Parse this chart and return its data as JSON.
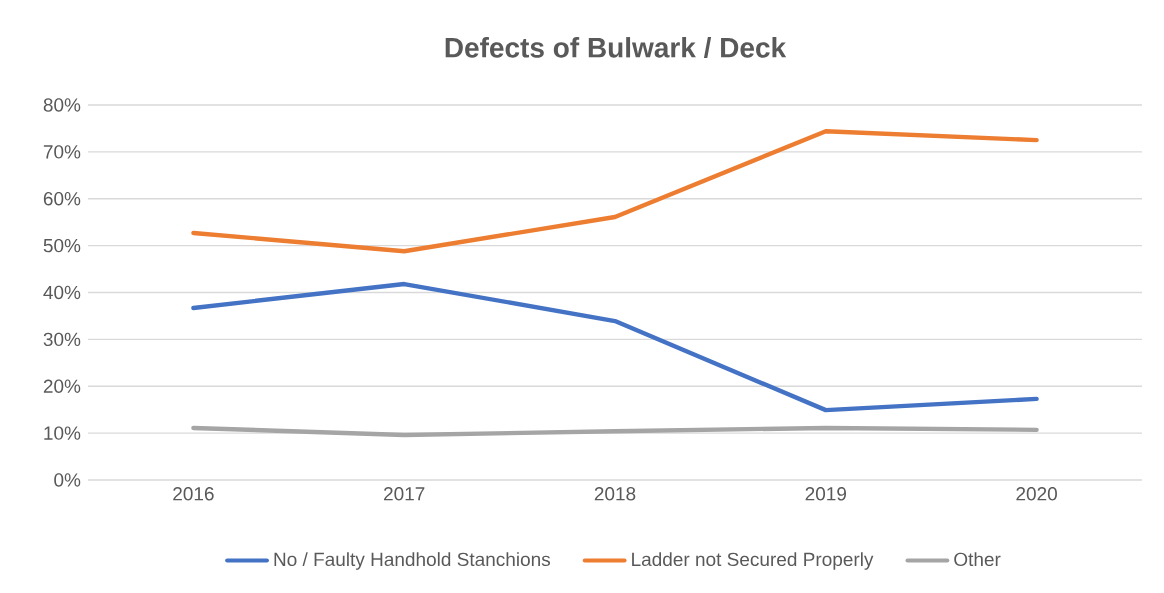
{
  "chart_data": {
    "type": "line",
    "title": "Defects of Bulwark / Deck",
    "categories": [
      "2016",
      "2017",
      "2018",
      "2019",
      "2020"
    ],
    "series": [
      {
        "name": "No / Faulty Handhold Stanchions",
        "color": "#4472c4",
        "values": [
          36.7,
          41.8,
          33.9,
          14.9,
          17.3
        ]
      },
      {
        "name": "Ladder not Secured Properly",
        "color": "#ed7d31",
        "values": [
          52.7,
          48.8,
          56.1,
          74.4,
          72.5
        ]
      },
      {
        "name": "Other",
        "color": "#a5a5a5",
        "values": [
          11.1,
          9.6,
          10.4,
          11.1,
          10.7
        ]
      }
    ],
    "ylim": [
      0,
      80
    ],
    "yticks": [
      {
        "value": 0,
        "label": "0%"
      },
      {
        "value": 10,
        "label": "10%"
      },
      {
        "value": 20,
        "label": "20%"
      },
      {
        "value": 30,
        "label": "30%"
      },
      {
        "value": 40,
        "label": "40%"
      },
      {
        "value": 50,
        "label": "50%"
      },
      {
        "value": 60,
        "label": "60%"
      },
      {
        "value": 70,
        "label": "70%"
      },
      {
        "value": 80,
        "label": "80%"
      }
    ],
    "grid": "y",
    "legend": "bottom",
    "marker": "none",
    "line_style": "solid"
  }
}
